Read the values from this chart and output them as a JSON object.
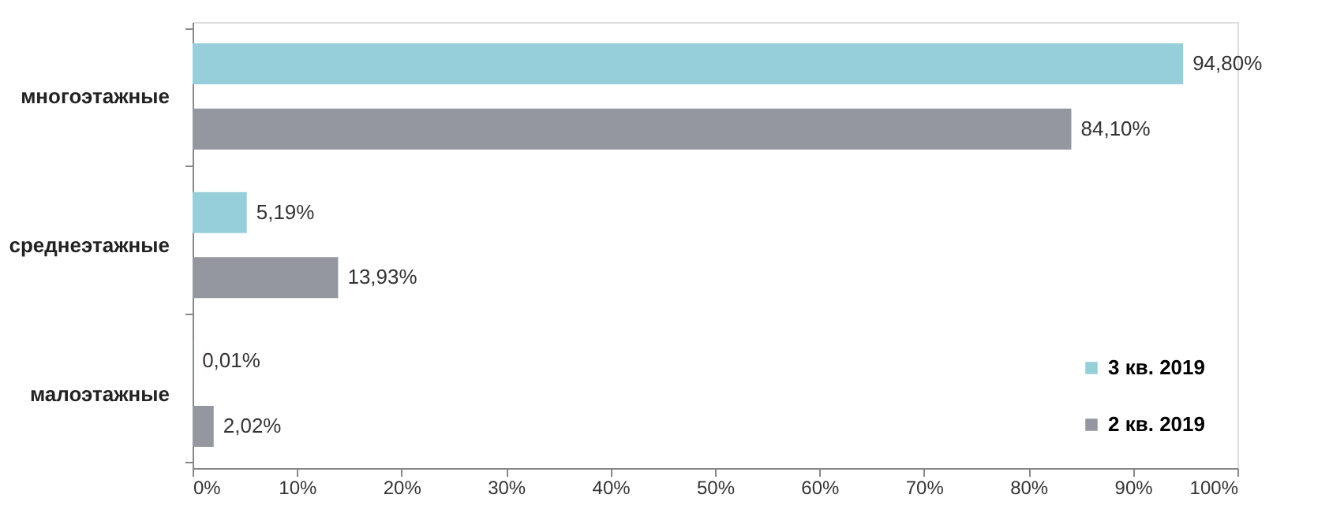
{
  "chart_data": {
    "type": "bar",
    "orientation": "horizontal",
    "categories": [
      "многоэтажные",
      "среднеэтажные",
      "малоэтажные"
    ],
    "series": [
      {
        "name": "3 кв. 2019",
        "color": "#96cfd9",
        "values": [
          94.8,
          5.19,
          0.01
        ],
        "value_labels": [
          "94,80%",
          "5,19%",
          "0,01%"
        ]
      },
      {
        "name": "2 кв. 2019",
        "color": "#9497a0",
        "values": [
          84.1,
          13.93,
          2.02
        ],
        "value_labels": [
          "84,10%",
          "13,93%",
          "2,02%"
        ]
      }
    ],
    "xlim": [
      0,
      100
    ],
    "xticks": [
      {
        "value": 0,
        "label": "0%"
      },
      {
        "value": 10,
        "label": "10%"
      },
      {
        "value": 20,
        "label": "20%"
      },
      {
        "value": 30,
        "label": "30%"
      },
      {
        "value": 40,
        "label": "40%"
      },
      {
        "value": 50,
        "label": "50%"
      },
      {
        "value": 60,
        "label": "60%"
      },
      {
        "value": 70,
        "label": "70%"
      },
      {
        "value": 80,
        "label": "80%"
      },
      {
        "value": 90,
        "label": "90%"
      },
      {
        "value": 100,
        "label": "100%"
      }
    ],
    "grid": false,
    "legend": "right"
  }
}
